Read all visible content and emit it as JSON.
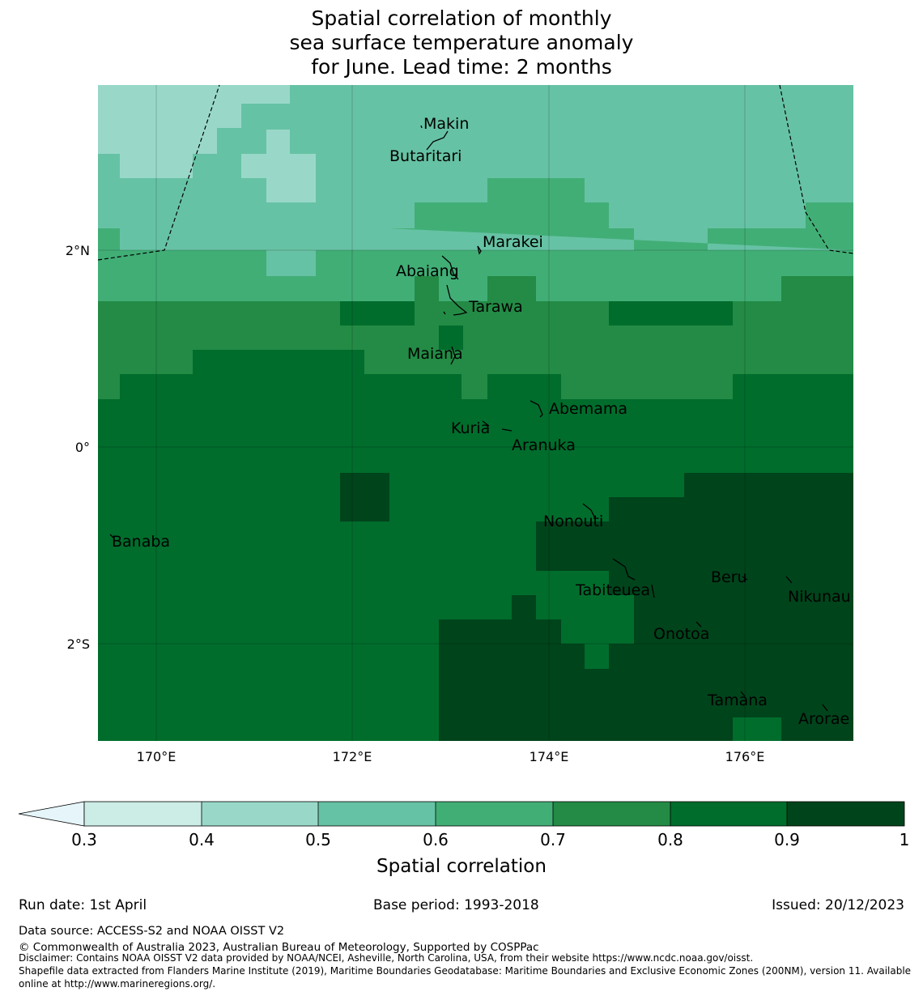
{
  "title": {
    "line1": "Spatial correlation of monthly",
    "line2": "sea surface temperature anomaly",
    "line3": "for June. Lead time: 2 months"
  },
  "axes": {
    "x_ticks": [
      "170°E",
      "172°E",
      "174°E",
      "176°E"
    ],
    "y_ticks": [
      "2°N",
      "0°",
      "2°S"
    ]
  },
  "islands": [
    "Makin",
    "Butaritari",
    "Marakei",
    "Abaiang",
    "Tarawa",
    "Maiana",
    "Abemama",
    "Kuria",
    "Aranuka",
    "Banaba",
    "Nonouti",
    "Beru",
    "Tabiteuea",
    "Nikunau",
    "Onotoa",
    "Tamana",
    "Arorae"
  ],
  "legend": {
    "title": "Spatial correlation",
    "ticks": [
      "0.3",
      "0.4",
      "0.5",
      "0.6",
      "0.7",
      "0.8",
      "0.9",
      "1"
    ],
    "colors": [
      "#e5f5f9",
      "#ccece6",
      "#99d8c9",
      "#66c2a4",
      "#41ae76",
      "#238b45",
      "#006d2c",
      "#00441b"
    ]
  },
  "footer": {
    "run_date": "Run date: 1st April",
    "base_period": "Base period: 1993-2018",
    "issued": "Issued: 20/12/2023",
    "data_source": "Data source: ACCESS-S2 and NOAA OISST V2",
    "copyright": "© Commonwealth of Australia 2023, Australian Bureau of Meteorology, Supported by COSPPac",
    "disclaimer": "Disclaimer: Contains NOAA OISST V2 data provided by NOAA/NCEI, Asheville, North Carolina, USA, from their website https://www.ncdc.noaa.gov/oisst.",
    "shapefile_line1": "Shapefile data extracted from Flanders Marine Institute (2019), Maritime Boundaries Geodatabase: Maritime Boundaries and Exclusive Economic Zones (200NM), version 11. Available",
    "shapefile_line2": "online at http://www.marineregions.org/."
  }
}
